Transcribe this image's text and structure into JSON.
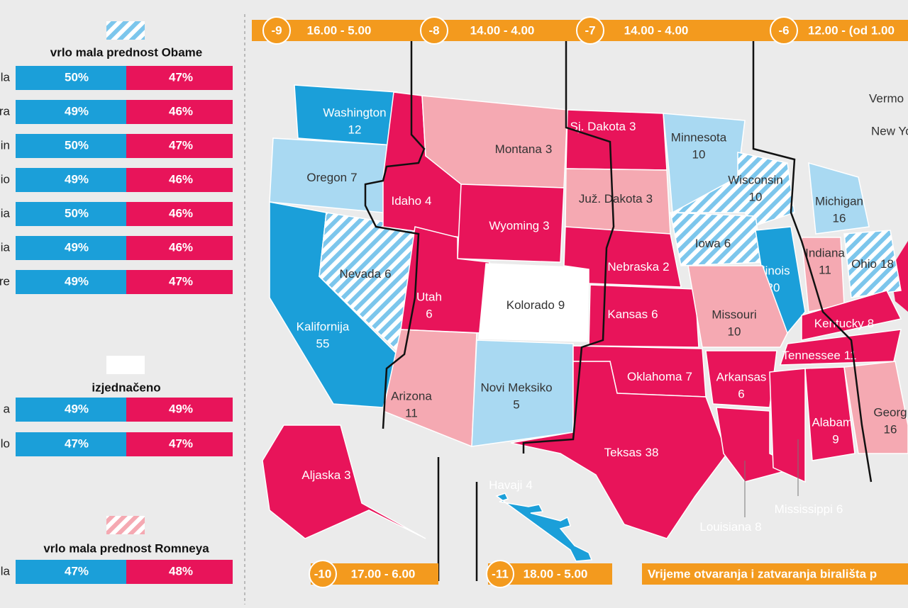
{
  "legend_groups": [
    {
      "title": "vrlo mala prednost Obame",
      "swatch": "#a9d9f2",
      "hatch": true,
      "rows": [
        {
          "label": "la",
          "obama": "50%",
          "romney": "47%"
        },
        {
          "label": "ra",
          "obama": "49%",
          "romney": "46%"
        },
        {
          "label": "in",
          "obama": "50%",
          "romney": "47%"
        },
        {
          "label": "io",
          "obama": "49%",
          "romney": "46%"
        },
        {
          "label": "ia",
          "obama": "50%",
          "romney": "46%"
        },
        {
          "label": "ia",
          "obama": "49%",
          "romney": "46%"
        },
        {
          "label": "re",
          "obama": "49%",
          "romney": "47%"
        }
      ]
    },
    {
      "title": "izjednačeno",
      "swatch": "#ffffff",
      "hatch": false,
      "rows": [
        {
          "label": "a",
          "obama": "49%",
          "romney": "49%"
        },
        {
          "label": "lo",
          "obama": "47%",
          "romney": "47%"
        }
      ]
    },
    {
      "title": "vrlo mala prednost Romneya",
      "swatch": "#f5a9b2",
      "hatch": true,
      "rows": [
        {
          "label": "la",
          "obama": "47%",
          "romney": "48%"
        }
      ]
    }
  ],
  "time_zones_top": [
    {
      "offset": "-9",
      "hours": "16.00 - 5.00"
    },
    {
      "offset": "-8",
      "hours": "14.00 - 4.00"
    },
    {
      "offset": "-7",
      "hours": "14.00 - 4.00"
    },
    {
      "offset": "-6",
      "hours": "12.00 - (od 1.00"
    }
  ],
  "time_zones_bottom": [
    {
      "offset": "-10",
      "hours": "17.00 - 6.00"
    },
    {
      "offset": "-11",
      "hours": "18.00 - 5.00"
    }
  ],
  "footer_note": "Vrijeme otvaranja i zatvaranja birališta p",
  "states": [
    {
      "name": "Washington",
      "votes": 12,
      "fill": "#1b9fd9"
    },
    {
      "name": "Oregon",
      "votes": 7,
      "fill": "#a9d9f2"
    },
    {
      "name": "Kalifornija",
      "votes": 55,
      "fill": "#1b9fd9"
    },
    {
      "name": "Nevada",
      "votes": 6,
      "fill": "#a9d9f2",
      "hatch": true
    },
    {
      "name": "Idaho",
      "votes": 4,
      "fill": "#e8145a"
    },
    {
      "name": "Montana",
      "votes": 3,
      "fill": "#f5a9b2"
    },
    {
      "name": "Wyoming",
      "votes": 3,
      "fill": "#e8145a"
    },
    {
      "name": "Utah",
      "votes": 6,
      "fill": "#e8145a"
    },
    {
      "name": "Kolorado",
      "votes": 9,
      "fill": "#ffffff"
    },
    {
      "name": "Arizona",
      "votes": 11,
      "fill": "#f5a9b2"
    },
    {
      "name": "Novi Meksiko",
      "votes": 5,
      "fill": "#a9d9f2"
    },
    {
      "name": "Sj. Dakota",
      "votes": 3,
      "fill": "#e8145a"
    },
    {
      "name": "Juž. Dakota",
      "votes": 3,
      "fill": "#f5a9b2"
    },
    {
      "name": "Nebraska",
      "votes": 2,
      "fill": "#e8145a"
    },
    {
      "name": "Kansas",
      "votes": 6,
      "fill": "#e8145a"
    },
    {
      "name": "Oklahoma",
      "votes": 7,
      "fill": "#e8145a"
    },
    {
      "name": "Teksas",
      "votes": 38,
      "fill": "#e8145a"
    },
    {
      "name": "Minnesota",
      "votes": 10,
      "fill": "#a9d9f2"
    },
    {
      "name": "Wisconsin",
      "votes": 10,
      "fill": "#a9d9f2",
      "hatch": true
    },
    {
      "name": "Iowa",
      "votes": 6,
      "fill": "#a9d9f2",
      "hatch": true
    },
    {
      "name": "Michigan",
      "votes": 16,
      "fill": "#a9d9f2"
    },
    {
      "name": "Illinois",
      "votes": 20,
      "fill": "#1b9fd9"
    },
    {
      "name": "Indiana",
      "votes": 11,
      "fill": "#f5a9b2"
    },
    {
      "name": "Ohio",
      "votes": 18,
      "fill": "#a9d9f2",
      "hatch": true
    },
    {
      "name": "Missouri",
      "votes": 10,
      "fill": "#f5a9b2"
    },
    {
      "name": "Kentucky",
      "votes": 8,
      "fill": "#e8145a"
    },
    {
      "name": "Tennessee",
      "votes": 11,
      "fill": "#e8145a"
    },
    {
      "name": "Arkansas",
      "votes": 6,
      "fill": "#e8145a"
    },
    {
      "name": "Louisiana",
      "votes": 8,
      "fill": "#e8145a"
    },
    {
      "name": "Mississippi",
      "votes": 6,
      "fill": "#e8145a"
    },
    {
      "name": "Alabama",
      "votes": 9,
      "fill": "#e8145a"
    },
    {
      "name": "Georg",
      "votes": 16,
      "fill": "#f5a9b2"
    },
    {
      "name": "Aljaska",
      "votes": 3,
      "fill": "#e8145a"
    },
    {
      "name": "Havaji",
      "votes": 4,
      "fill": "#1b9fd9"
    }
  ],
  "extra_labels": [
    "Vermo",
    "New Yo"
  ]
}
